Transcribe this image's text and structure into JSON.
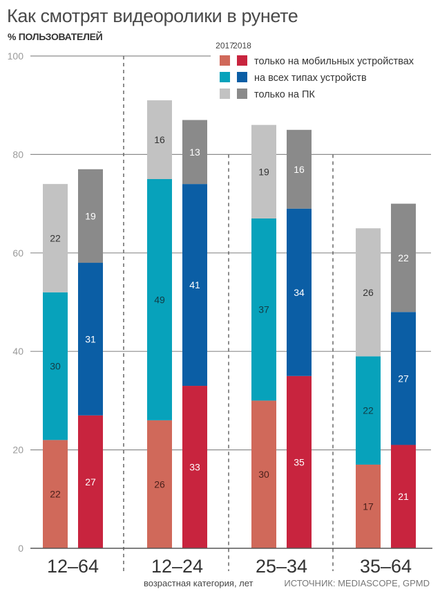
{
  "chart_data": {
    "type": "bar",
    "stacked": true,
    "title": "Как смотрят видеоролики в рунете",
    "subtitle": "% ПОЛЬЗОВАТЕЛЕЙ",
    "ylabel": "% пользователей",
    "xlabel": "возрастная категория, лет",
    "source": "ИСТОЧНИК: MEDIASCOPE, GPMD",
    "ylim": [
      0,
      100
    ],
    "yticks": [
      0,
      20,
      40,
      60,
      80,
      100
    ],
    "grid": true,
    "legend_position": "top-right",
    "years": [
      "2017",
      "2018"
    ],
    "categories": [
      "12–64",
      "12–24",
      "25–34",
      "35–64"
    ],
    "series": [
      {
        "name": "только на мобильных устройствах",
        "key": "mobile",
        "colors": {
          "2017": "#d0695a",
          "2018": "#c8243e"
        },
        "label_colors": {
          "2017": "#4a1f1a",
          "2018": "#ffffff"
        },
        "values": {
          "2017": [
            22,
            26,
            30,
            17
          ],
          "2018": [
            27,
            33,
            35,
            21
          ]
        }
      },
      {
        "name": "на всех типах устройств",
        "key": "all",
        "colors": {
          "2017": "#07a2bb",
          "2018": "#0b5ea5"
        },
        "label_colors": {
          "2017": "#123c45",
          "2018": "#ffffff"
        },
        "values": {
          "2017": [
            30,
            49,
            37,
            22
          ],
          "2018": [
            31,
            41,
            34,
            27
          ]
        }
      },
      {
        "name": "только на ПК",
        "key": "pc",
        "colors": {
          "2017": "#c2c2c2",
          "2018": "#8a8a8a"
        },
        "label_colors": {
          "2017": "#333333",
          "2018": "#ffffff"
        },
        "values": {
          "2017": [
            22,
            16,
            19,
            26
          ],
          "2018": [
            19,
            13,
            16,
            22
          ]
        }
      }
    ]
  },
  "colors": {
    "grid": "#8c8c8c",
    "divider": "#666666",
    "axis": "#555555"
  }
}
